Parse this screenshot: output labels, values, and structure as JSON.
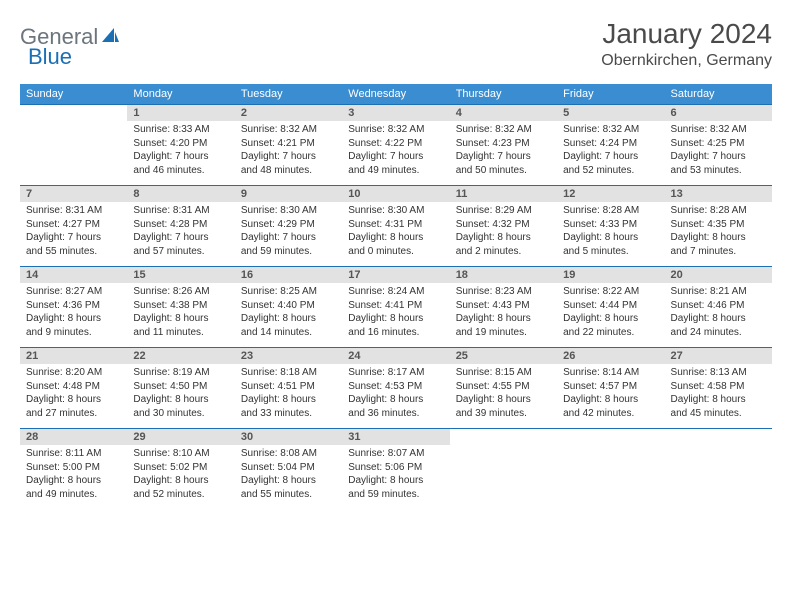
{
  "brand": {
    "name1": "General",
    "name2": "Blue"
  },
  "title": "January 2024",
  "location": "Obernkirchen, Germany",
  "colors": {
    "header_bg": "#3a8dd0",
    "border": "#1a6fb5",
    "daynum_bg": "#e2e2e2",
    "text": "#333333",
    "title": "#4a4a4a",
    "logo_gray": "#6c757d"
  },
  "day_headers": [
    "Sunday",
    "Monday",
    "Tuesday",
    "Wednesday",
    "Thursday",
    "Friday",
    "Saturday"
  ],
  "weeks": [
    {
      "nums": [
        "",
        "1",
        "2",
        "3",
        "4",
        "5",
        "6"
      ],
      "cells": [
        null,
        {
          "sr": "Sunrise: 8:33 AM",
          "ss": "Sunset: 4:20 PM",
          "d1": "Daylight: 7 hours",
          "d2": "and 46 minutes."
        },
        {
          "sr": "Sunrise: 8:32 AM",
          "ss": "Sunset: 4:21 PM",
          "d1": "Daylight: 7 hours",
          "d2": "and 48 minutes."
        },
        {
          "sr": "Sunrise: 8:32 AM",
          "ss": "Sunset: 4:22 PM",
          "d1": "Daylight: 7 hours",
          "d2": "and 49 minutes."
        },
        {
          "sr": "Sunrise: 8:32 AM",
          "ss": "Sunset: 4:23 PM",
          "d1": "Daylight: 7 hours",
          "d2": "and 50 minutes."
        },
        {
          "sr": "Sunrise: 8:32 AM",
          "ss": "Sunset: 4:24 PM",
          "d1": "Daylight: 7 hours",
          "d2": "and 52 minutes."
        },
        {
          "sr": "Sunrise: 8:32 AM",
          "ss": "Sunset: 4:25 PM",
          "d1": "Daylight: 7 hours",
          "d2": "and 53 minutes."
        }
      ]
    },
    {
      "nums": [
        "7",
        "8",
        "9",
        "10",
        "11",
        "12",
        "13"
      ],
      "cells": [
        {
          "sr": "Sunrise: 8:31 AM",
          "ss": "Sunset: 4:27 PM",
          "d1": "Daylight: 7 hours",
          "d2": "and 55 minutes."
        },
        {
          "sr": "Sunrise: 8:31 AM",
          "ss": "Sunset: 4:28 PM",
          "d1": "Daylight: 7 hours",
          "d2": "and 57 minutes."
        },
        {
          "sr": "Sunrise: 8:30 AM",
          "ss": "Sunset: 4:29 PM",
          "d1": "Daylight: 7 hours",
          "d2": "and 59 minutes."
        },
        {
          "sr": "Sunrise: 8:30 AM",
          "ss": "Sunset: 4:31 PM",
          "d1": "Daylight: 8 hours",
          "d2": "and 0 minutes."
        },
        {
          "sr": "Sunrise: 8:29 AM",
          "ss": "Sunset: 4:32 PM",
          "d1": "Daylight: 8 hours",
          "d2": "and 2 minutes."
        },
        {
          "sr": "Sunrise: 8:28 AM",
          "ss": "Sunset: 4:33 PM",
          "d1": "Daylight: 8 hours",
          "d2": "and 5 minutes."
        },
        {
          "sr": "Sunrise: 8:28 AM",
          "ss": "Sunset: 4:35 PM",
          "d1": "Daylight: 8 hours",
          "d2": "and 7 minutes."
        }
      ]
    },
    {
      "nums": [
        "14",
        "15",
        "16",
        "17",
        "18",
        "19",
        "20"
      ],
      "cells": [
        {
          "sr": "Sunrise: 8:27 AM",
          "ss": "Sunset: 4:36 PM",
          "d1": "Daylight: 8 hours",
          "d2": "and 9 minutes."
        },
        {
          "sr": "Sunrise: 8:26 AM",
          "ss": "Sunset: 4:38 PM",
          "d1": "Daylight: 8 hours",
          "d2": "and 11 minutes."
        },
        {
          "sr": "Sunrise: 8:25 AM",
          "ss": "Sunset: 4:40 PM",
          "d1": "Daylight: 8 hours",
          "d2": "and 14 minutes."
        },
        {
          "sr": "Sunrise: 8:24 AM",
          "ss": "Sunset: 4:41 PM",
          "d1": "Daylight: 8 hours",
          "d2": "and 16 minutes."
        },
        {
          "sr": "Sunrise: 8:23 AM",
          "ss": "Sunset: 4:43 PM",
          "d1": "Daylight: 8 hours",
          "d2": "and 19 minutes."
        },
        {
          "sr": "Sunrise: 8:22 AM",
          "ss": "Sunset: 4:44 PM",
          "d1": "Daylight: 8 hours",
          "d2": "and 22 minutes."
        },
        {
          "sr": "Sunrise: 8:21 AM",
          "ss": "Sunset: 4:46 PM",
          "d1": "Daylight: 8 hours",
          "d2": "and 24 minutes."
        }
      ]
    },
    {
      "nums": [
        "21",
        "22",
        "23",
        "24",
        "25",
        "26",
        "27"
      ],
      "cells": [
        {
          "sr": "Sunrise: 8:20 AM",
          "ss": "Sunset: 4:48 PM",
          "d1": "Daylight: 8 hours",
          "d2": "and 27 minutes."
        },
        {
          "sr": "Sunrise: 8:19 AM",
          "ss": "Sunset: 4:50 PM",
          "d1": "Daylight: 8 hours",
          "d2": "and 30 minutes."
        },
        {
          "sr": "Sunrise: 8:18 AM",
          "ss": "Sunset: 4:51 PM",
          "d1": "Daylight: 8 hours",
          "d2": "and 33 minutes."
        },
        {
          "sr": "Sunrise: 8:17 AM",
          "ss": "Sunset: 4:53 PM",
          "d1": "Daylight: 8 hours",
          "d2": "and 36 minutes."
        },
        {
          "sr": "Sunrise: 8:15 AM",
          "ss": "Sunset: 4:55 PM",
          "d1": "Daylight: 8 hours",
          "d2": "and 39 minutes."
        },
        {
          "sr": "Sunrise: 8:14 AM",
          "ss": "Sunset: 4:57 PM",
          "d1": "Daylight: 8 hours",
          "d2": "and 42 minutes."
        },
        {
          "sr": "Sunrise: 8:13 AM",
          "ss": "Sunset: 4:58 PM",
          "d1": "Daylight: 8 hours",
          "d2": "and 45 minutes."
        }
      ]
    },
    {
      "nums": [
        "28",
        "29",
        "30",
        "31",
        "",
        "",
        ""
      ],
      "cells": [
        {
          "sr": "Sunrise: 8:11 AM",
          "ss": "Sunset: 5:00 PM",
          "d1": "Daylight: 8 hours",
          "d2": "and 49 minutes."
        },
        {
          "sr": "Sunrise: 8:10 AM",
          "ss": "Sunset: 5:02 PM",
          "d1": "Daylight: 8 hours",
          "d2": "and 52 minutes."
        },
        {
          "sr": "Sunrise: 8:08 AM",
          "ss": "Sunset: 5:04 PM",
          "d1": "Daylight: 8 hours",
          "d2": "and 55 minutes."
        },
        {
          "sr": "Sunrise: 8:07 AM",
          "ss": "Sunset: 5:06 PM",
          "d1": "Daylight: 8 hours",
          "d2": "and 59 minutes."
        },
        null,
        null,
        null
      ]
    }
  ]
}
